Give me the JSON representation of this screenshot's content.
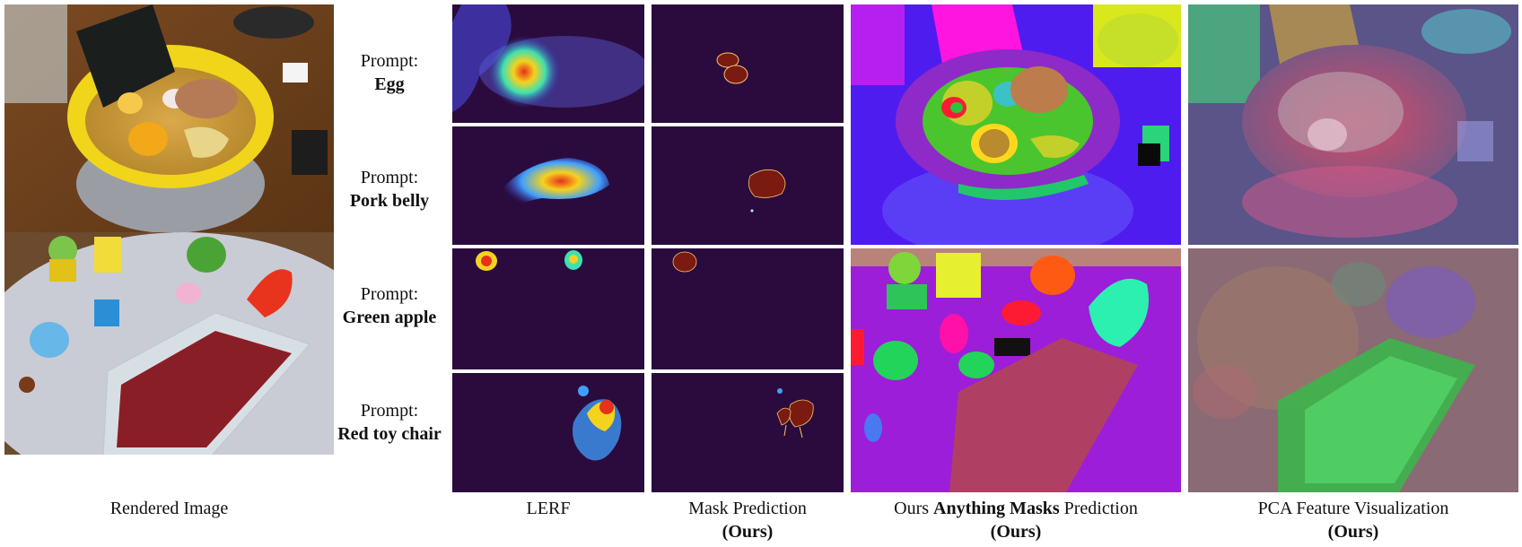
{
  "prompts": [
    {
      "label": "Prompt:",
      "object": "Egg"
    },
    {
      "label": "Prompt:",
      "object": "Pork belly"
    },
    {
      "label": "Prompt:",
      "object": "Green apple"
    },
    {
      "label": "Prompt:",
      "object": "Red toy chair"
    }
  ],
  "captions": {
    "rendered": "Rendered Image",
    "lerf": "LERF",
    "mask_line1": "Mask Prediction",
    "mask_line2": "(Ours)",
    "anything_pre": "Ours ",
    "anything_bold": "Anything Masks",
    "anything_post": " Prediction",
    "anything_line2": "(Ours)",
    "pca_line1": "PCA Feature Visualization",
    "pca_line2": "(Ours)"
  },
  "colors": {
    "mask_bg": "#2b0b3d",
    "mask_fill": "#7a1a10",
    "lerf_hot": "#e8301a",
    "lerf_warm": "#f5d21e",
    "lerf_cool": "#3fa0ff"
  }
}
